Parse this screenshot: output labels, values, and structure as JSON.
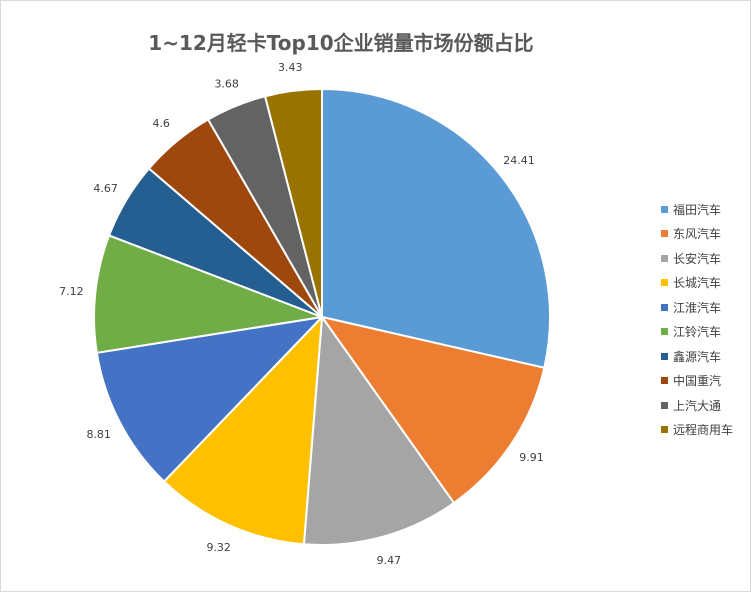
{
  "chart_data": {
    "type": "pie",
    "title": "1~12月轻卡Top10企业销量市场份额占比",
    "categories": [
      "福田汽车",
      "东风汽车",
      "长安汽车",
      "长城汽车",
      "江淮汽车",
      "江铃汽车",
      "鑫源汽车",
      "中国重汽",
      "上汽大通",
      "远程商用车"
    ],
    "values": [
      24.41,
      9.91,
      9.47,
      9.32,
      8.81,
      7.12,
      4.67,
      4.6,
      3.68,
      3.43
    ],
    "data_labels": [
      "24.41",
      "9.91",
      "9.47",
      "9.32",
      "8.81",
      "7.12",
      "4.67",
      "4.6",
      "3.68",
      "3.43"
    ],
    "colors": [
      "#5b9bd5",
      "#ed7d31",
      "#a5a5a5",
      "#ffc000",
      "#4472c4",
      "#70ad47",
      "#255e91",
      "#9e480e",
      "#636363",
      "#997300"
    ],
    "legend_position": "right",
    "start_angle": "top",
    "direction": "clockwise"
  }
}
